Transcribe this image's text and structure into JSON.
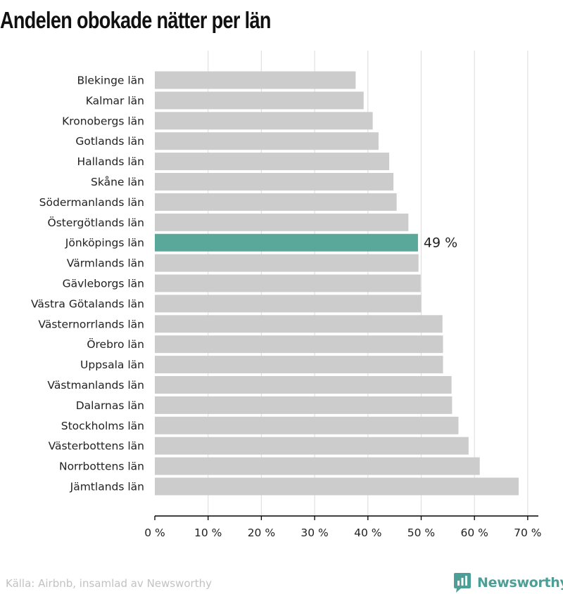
{
  "title": "Andelen obokade nätter per län",
  "source": "Källa: Airbnb, insamlad av Newsworthy",
  "brand": {
    "name": "Newsworthy",
    "icon": "newsworthy-logo-icon"
  },
  "colors": {
    "bar": "#cccccc",
    "highlight": "#5aa89a",
    "grid": "#e0e0e0",
    "axis": "#000000",
    "brand": "#4c9f96"
  },
  "chart_data": {
    "type": "bar",
    "orientation": "horizontal",
    "categories": [
      "Blekinge län",
      "Kalmar län",
      "Kronobergs län",
      "Gotlands län",
      "Hallands län",
      "Skåne län",
      "Södermanlands län",
      "Östergötlands län",
      "Jönköpings län",
      "Värmlands län",
      "Gävleborgs län",
      "Västra Götalands län",
      "Västernorrlands län",
      "Örebro län",
      "Uppsala län",
      "Västmanlands län",
      "Dalarnas län",
      "Stockholms län",
      "Västerbottens län",
      "Norrbottens län",
      "Jämtlands län"
    ],
    "values": [
      37.7,
      39.2,
      40.9,
      42.0,
      44.0,
      44.8,
      45.4,
      47.6,
      49.4,
      49.5,
      49.9,
      50.0,
      54.0,
      54.1,
      54.1,
      55.7,
      55.8,
      57.0,
      58.9,
      61.0,
      68.3
    ],
    "highlight_index": 8,
    "highlight_label": "49 %",
    "xlim": [
      0,
      72
    ],
    "xticks": [
      0,
      10,
      20,
      30,
      40,
      50,
      60,
      70
    ],
    "xtick_labels": [
      "0 %",
      "10 %",
      "20 %",
      "30 %",
      "40 %",
      "50 %",
      "60 %",
      "70 %"
    ],
    "grid": true
  }
}
